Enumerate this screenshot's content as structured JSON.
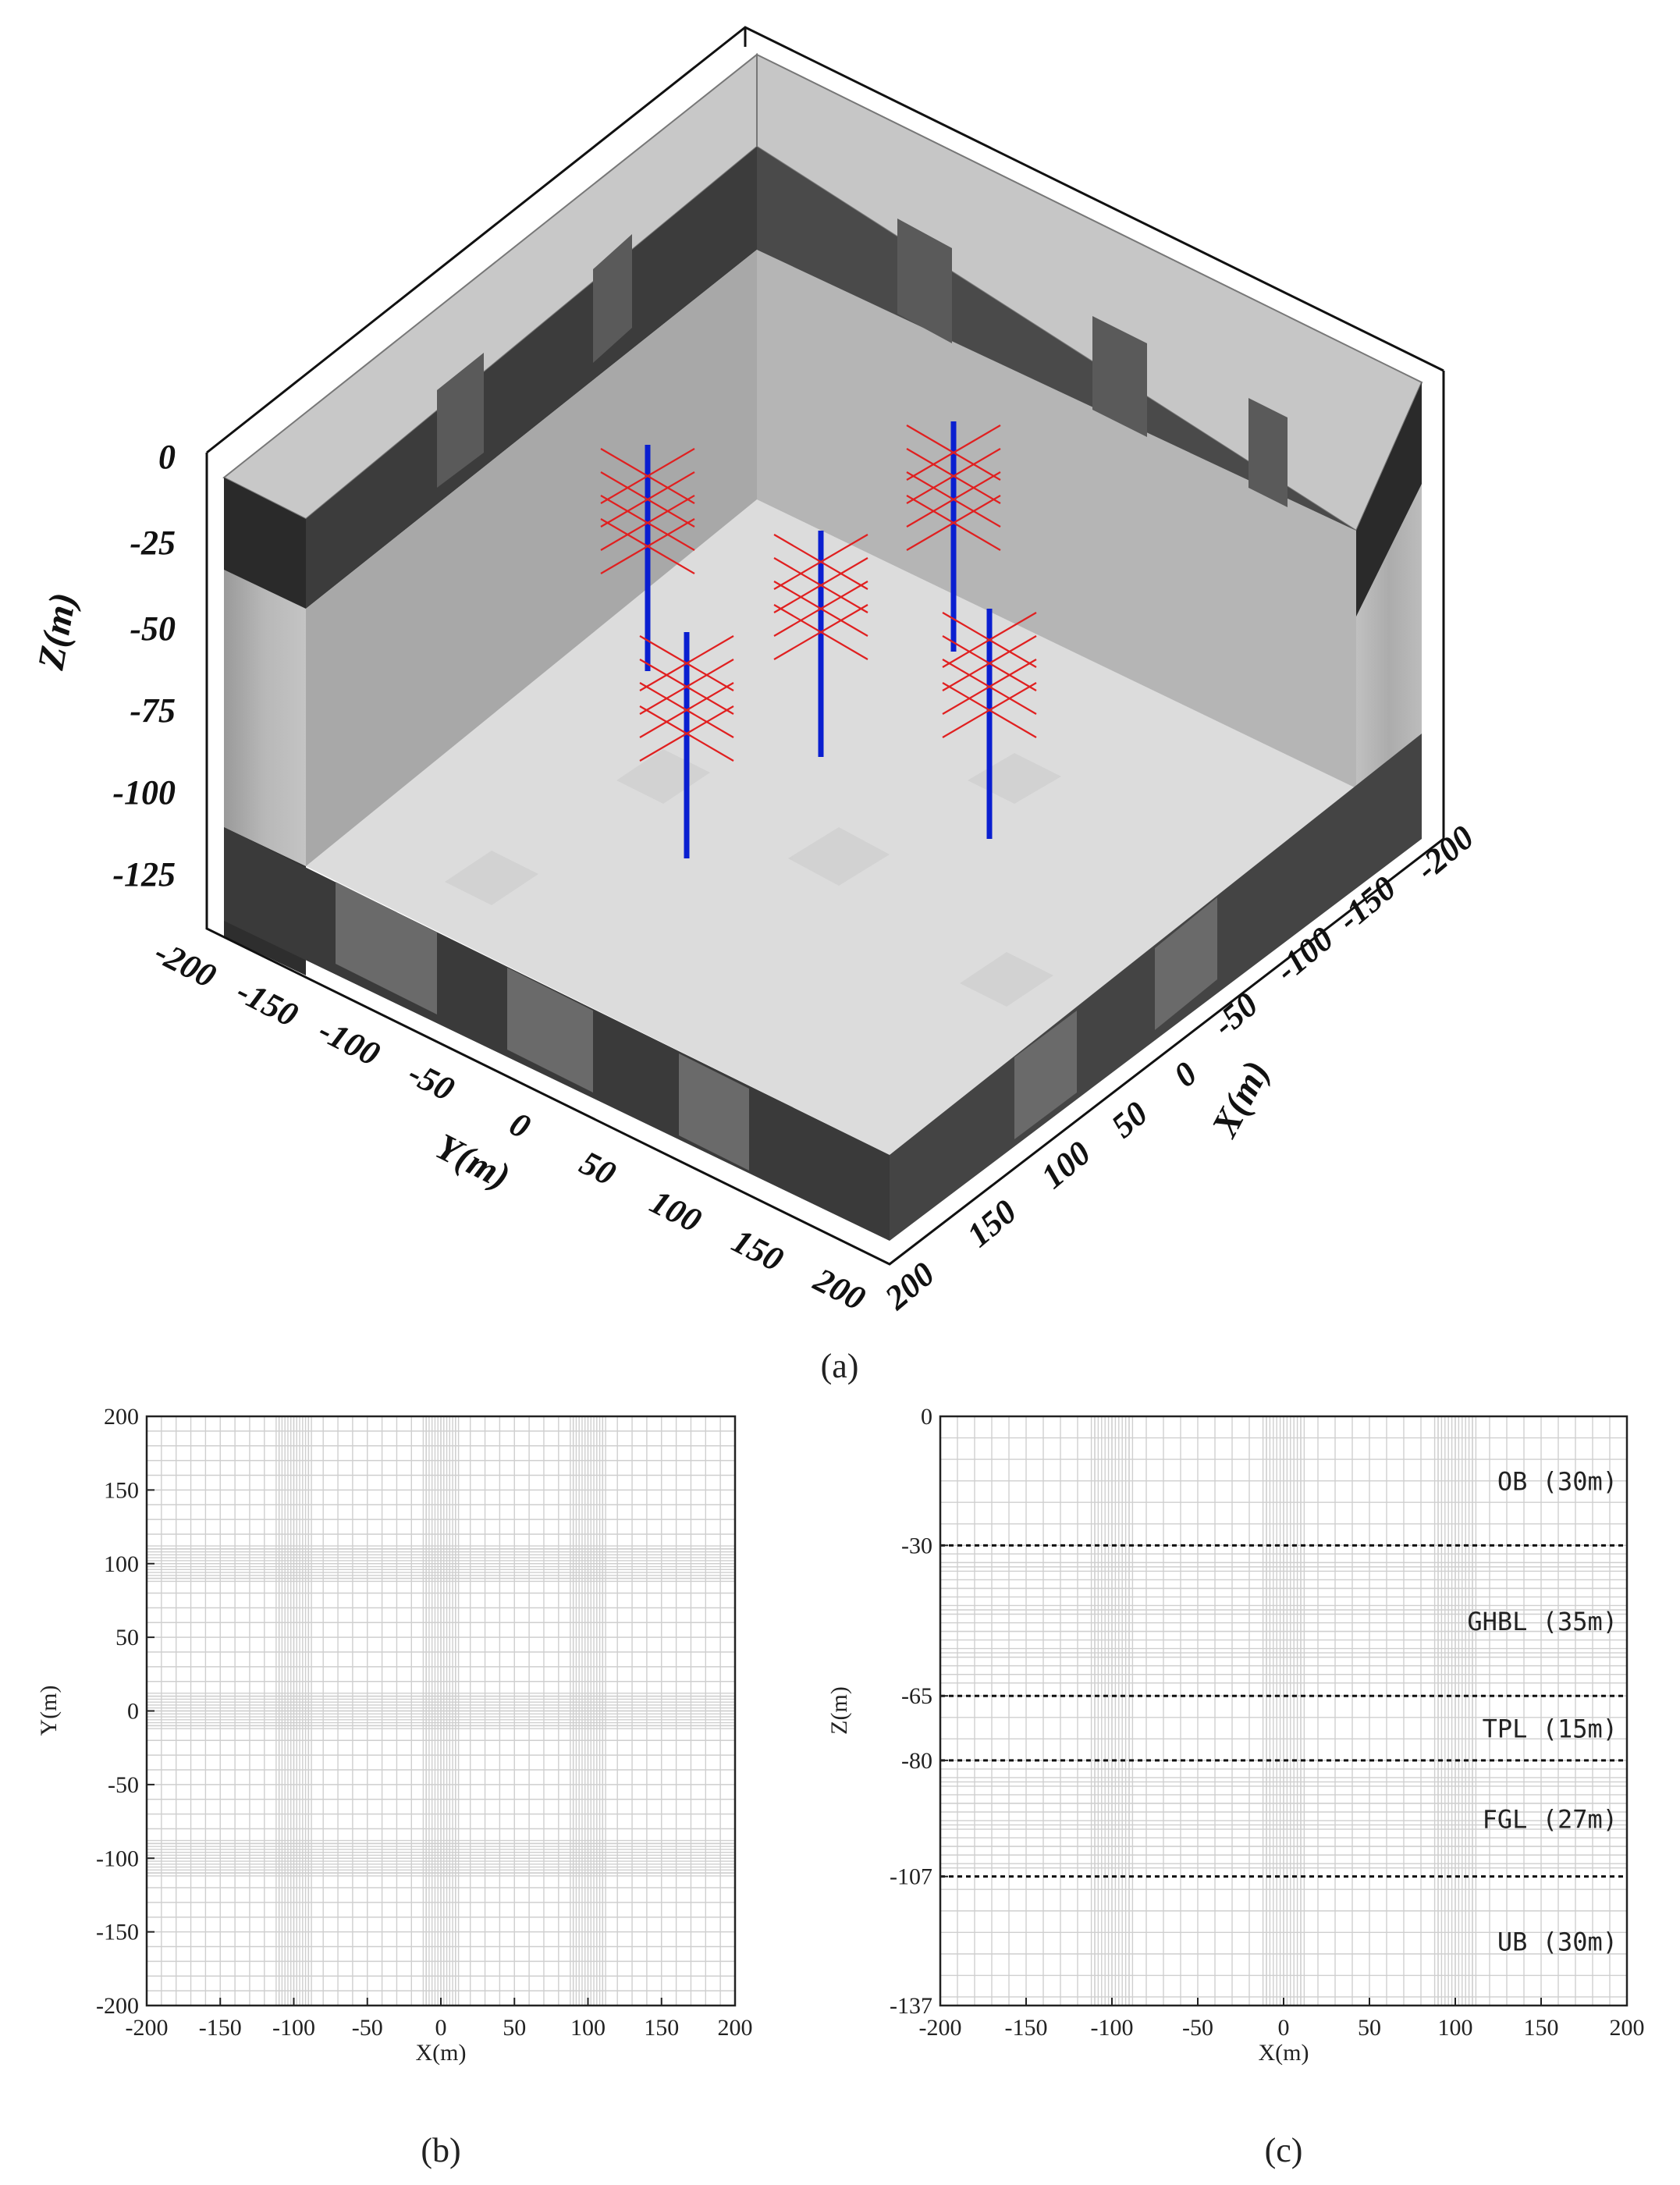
{
  "panels": {
    "a": {
      "caption": "(a)",
      "z_axis_label": "Z(m)",
      "z_ticks": [
        "0",
        "-25",
        "-50",
        "-75",
        "-100",
        "-125"
      ],
      "y_axis_label": "Y(m)",
      "y_ticks": [
        "-200",
        "-150",
        "-100",
        "-50",
        "0",
        "50",
        "100",
        "150",
        "200"
      ],
      "x_axis_label": "X(m)",
      "x_ticks": [
        "200",
        "150",
        "100",
        "50",
        "0",
        "-50",
        "-100",
        "-150",
        "-200"
      ]
    },
    "b": {
      "caption": "(b)",
      "xlabel": "X(m)",
      "ylabel": "Y(m)",
      "x_ticks": [
        "-200",
        "-150",
        "-100",
        "-50",
        "0",
        "50",
        "100",
        "150",
        "200"
      ],
      "y_ticks": [
        "200",
        "150",
        "100",
        "50",
        "0",
        "-50",
        "-100",
        "-150",
        "-200"
      ]
    },
    "c": {
      "caption": "(c)",
      "xlabel": "X(m)",
      "ylabel": "Z(m)",
      "x_ticks": [
        "-200",
        "-150",
        "-100",
        "-50",
        "0",
        "50",
        "100",
        "150",
        "200"
      ],
      "z_ticks": [
        "0",
        "-30",
        "-65",
        "-80",
        "-107",
        "-137"
      ],
      "layers": [
        {
          "name": "OB (30m)",
          "top": 0,
          "bottom": -30
        },
        {
          "name": "GHBL (35m)",
          "top": -30,
          "bottom": -65
        },
        {
          "name": "TPL (15m)",
          "top": -65,
          "bottom": -80
        },
        {
          "name": "FGL (27m)",
          "top": -80,
          "bottom": -107
        },
        {
          "name": "UB (30m)",
          "top": -107,
          "bottom": -137
        }
      ],
      "layer_color": "#c00000"
    }
  }
}
